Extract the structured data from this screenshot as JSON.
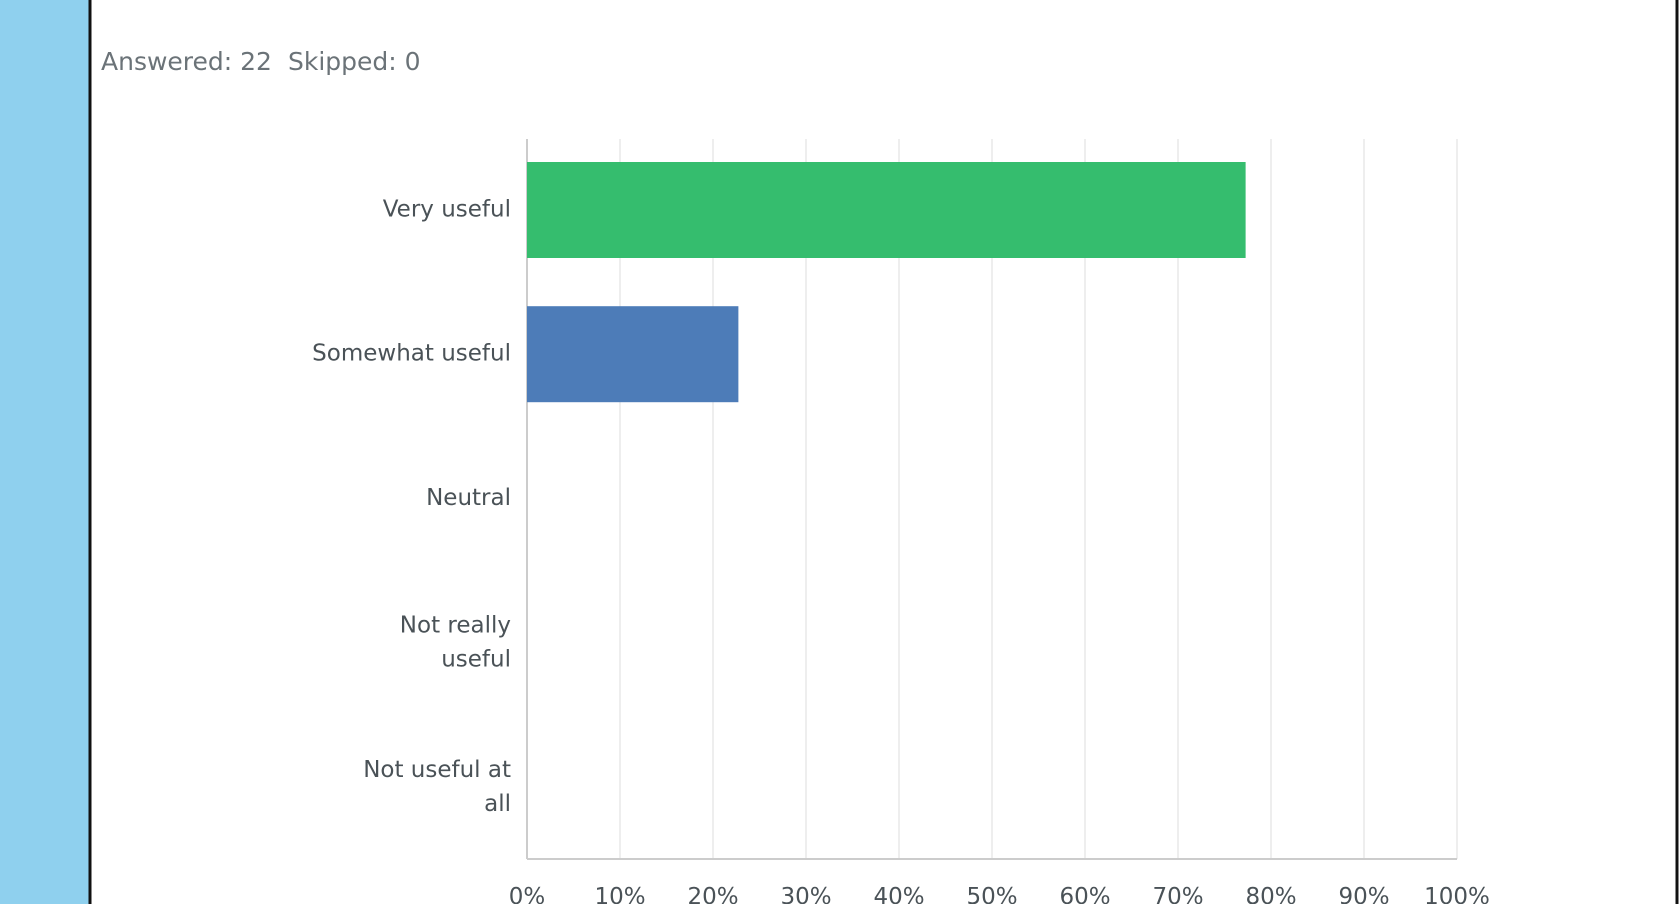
{
  "summary": {
    "answered": "Answered: 22",
    "skipped": "Skipped: 0"
  },
  "chart_data": {
    "type": "barh",
    "categories": [
      "Very useful",
      "Somewhat useful",
      "Neutral",
      "Not really useful",
      "Not useful at all"
    ],
    "values": [
      77.27,
      22.73,
      0,
      0,
      0
    ],
    "colors": [
      "#35bd6e",
      "#4d7cb8",
      "#e6a23c",
      "#d05b5b",
      "#8a6fb0"
    ],
    "xlim": [
      0,
      100
    ],
    "xticks": [
      {
        "value": 0,
        "label": "0%"
      },
      {
        "value": 10,
        "label": "10%"
      },
      {
        "value": 20,
        "label": "20%"
      },
      {
        "value": 30,
        "label": "30%"
      },
      {
        "value": 40,
        "label": "40%"
      },
      {
        "value": 50,
        "label": "50%"
      },
      {
        "value": 60,
        "label": "60%"
      },
      {
        "value": 70,
        "label": "70%"
      },
      {
        "value": 80,
        "label": "80%"
      },
      {
        "value": 90,
        "label": "90%"
      },
      {
        "value": 100,
        "label": "100%"
      }
    ],
    "grid": true
  }
}
